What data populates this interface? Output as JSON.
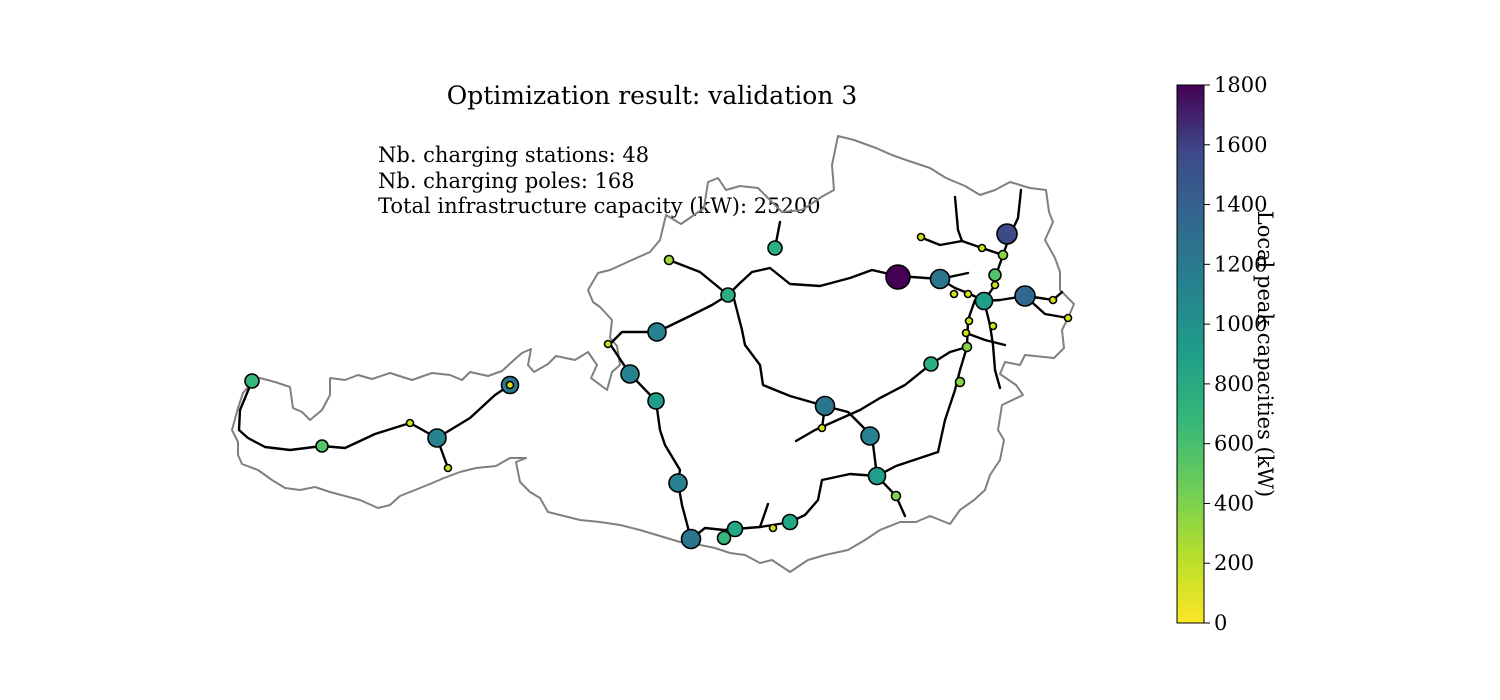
{
  "title": "Optimization result: validation 3",
  "stats": [
    {
      "label": "Nb. charging stations",
      "value": "48"
    },
    {
      "label": "Nb. charging poles",
      "value": "168"
    },
    {
      "label": "Total infrastructure capacity (kW)",
      "value": "25200"
    }
  ],
  "colorbar": {
    "label": "Local peak capacities (kW)",
    "min": 0,
    "max": 1800,
    "ticks": [
      "0",
      "200",
      "400",
      "600",
      "800",
      "1000",
      "1200",
      "1400",
      "1600",
      "1800"
    ],
    "colormap": "viridis_r",
    "colors": [
      "#fde725",
      "#5ec962",
      "#21918c",
      "#3b528b",
      "#440154"
    ]
  },
  "map": {
    "region": "Austria",
    "border_color": "#808080",
    "road_color": "#000000"
  },
  "stations_kw": [
    1800,
    1400,
    1200,
    1000,
    1000,
    1000,
    1000,
    900,
    900,
    900,
    900,
    900,
    800,
    800,
    800,
    800,
    800,
    800,
    800,
    800,
    600,
    600,
    600,
    600,
    600,
    600,
    600,
    600,
    400,
    400,
    400,
    400,
    400,
    200,
    200,
    200,
    200,
    200,
    200,
    200,
    200,
    200,
    200,
    200,
    200,
    200,
    200,
    200
  ]
}
